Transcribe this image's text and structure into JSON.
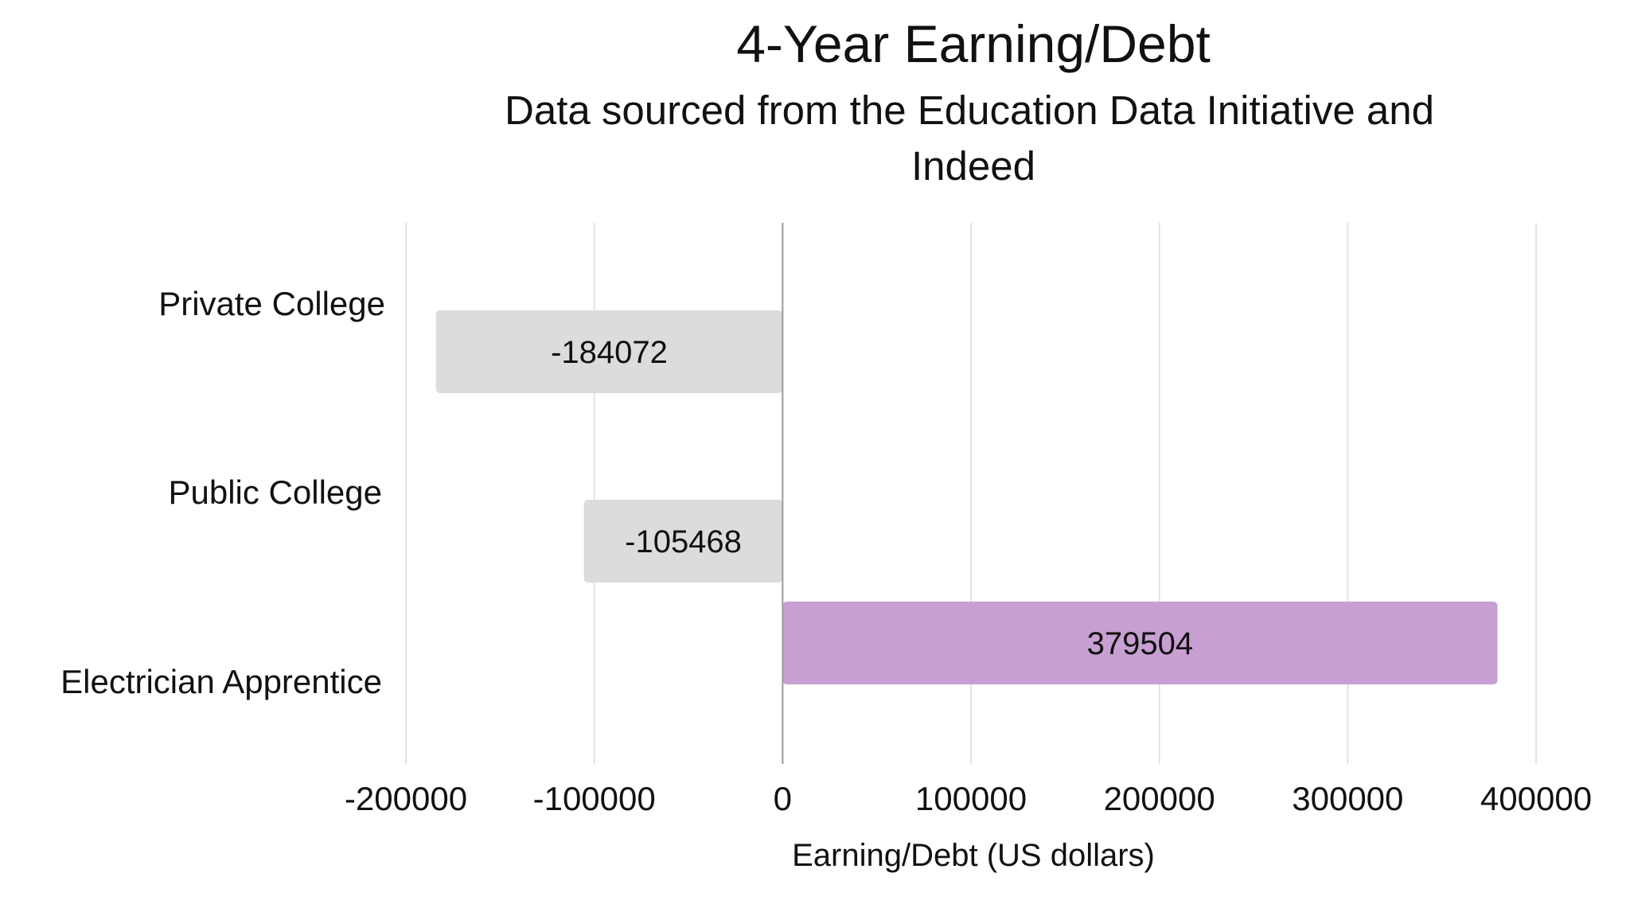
{
  "chart_data": {
    "type": "bar",
    "orientation": "horizontal",
    "title": "4-Year Earning/Debt",
    "subtitle_lines": [
      "Data sourced from the Education Data Initiative and",
      "Indeed"
    ],
    "categories": [
      "Private College",
      "Public College",
      "Electrician Apprentice"
    ],
    "values": [
      -184072,
      -105468,
      379504
    ],
    "value_labels": [
      "-184072",
      "-105468",
      "379504"
    ],
    "xlabel": "Earning/Debt (US dollars)",
    "ylabel": "",
    "xlim": [
      -200000,
      400000
    ],
    "x_ticks": [
      -200000,
      -100000,
      0,
      100000,
      200000,
      300000,
      400000
    ],
    "x_tick_labels": [
      "-200000",
      "-100000",
      "0",
      "100000",
      "200000",
      "300000",
      "400000"
    ],
    "grid": true,
    "legend": "none",
    "colors": {
      "Private College": "#dcdcdc",
      "Public College": "#dcdcdc",
      "Electrician Apprentice": "#c89fd2",
      "gridline": "#e3e3e3",
      "zero_line": "#9a9a9a",
      "text": "#111111"
    }
  }
}
